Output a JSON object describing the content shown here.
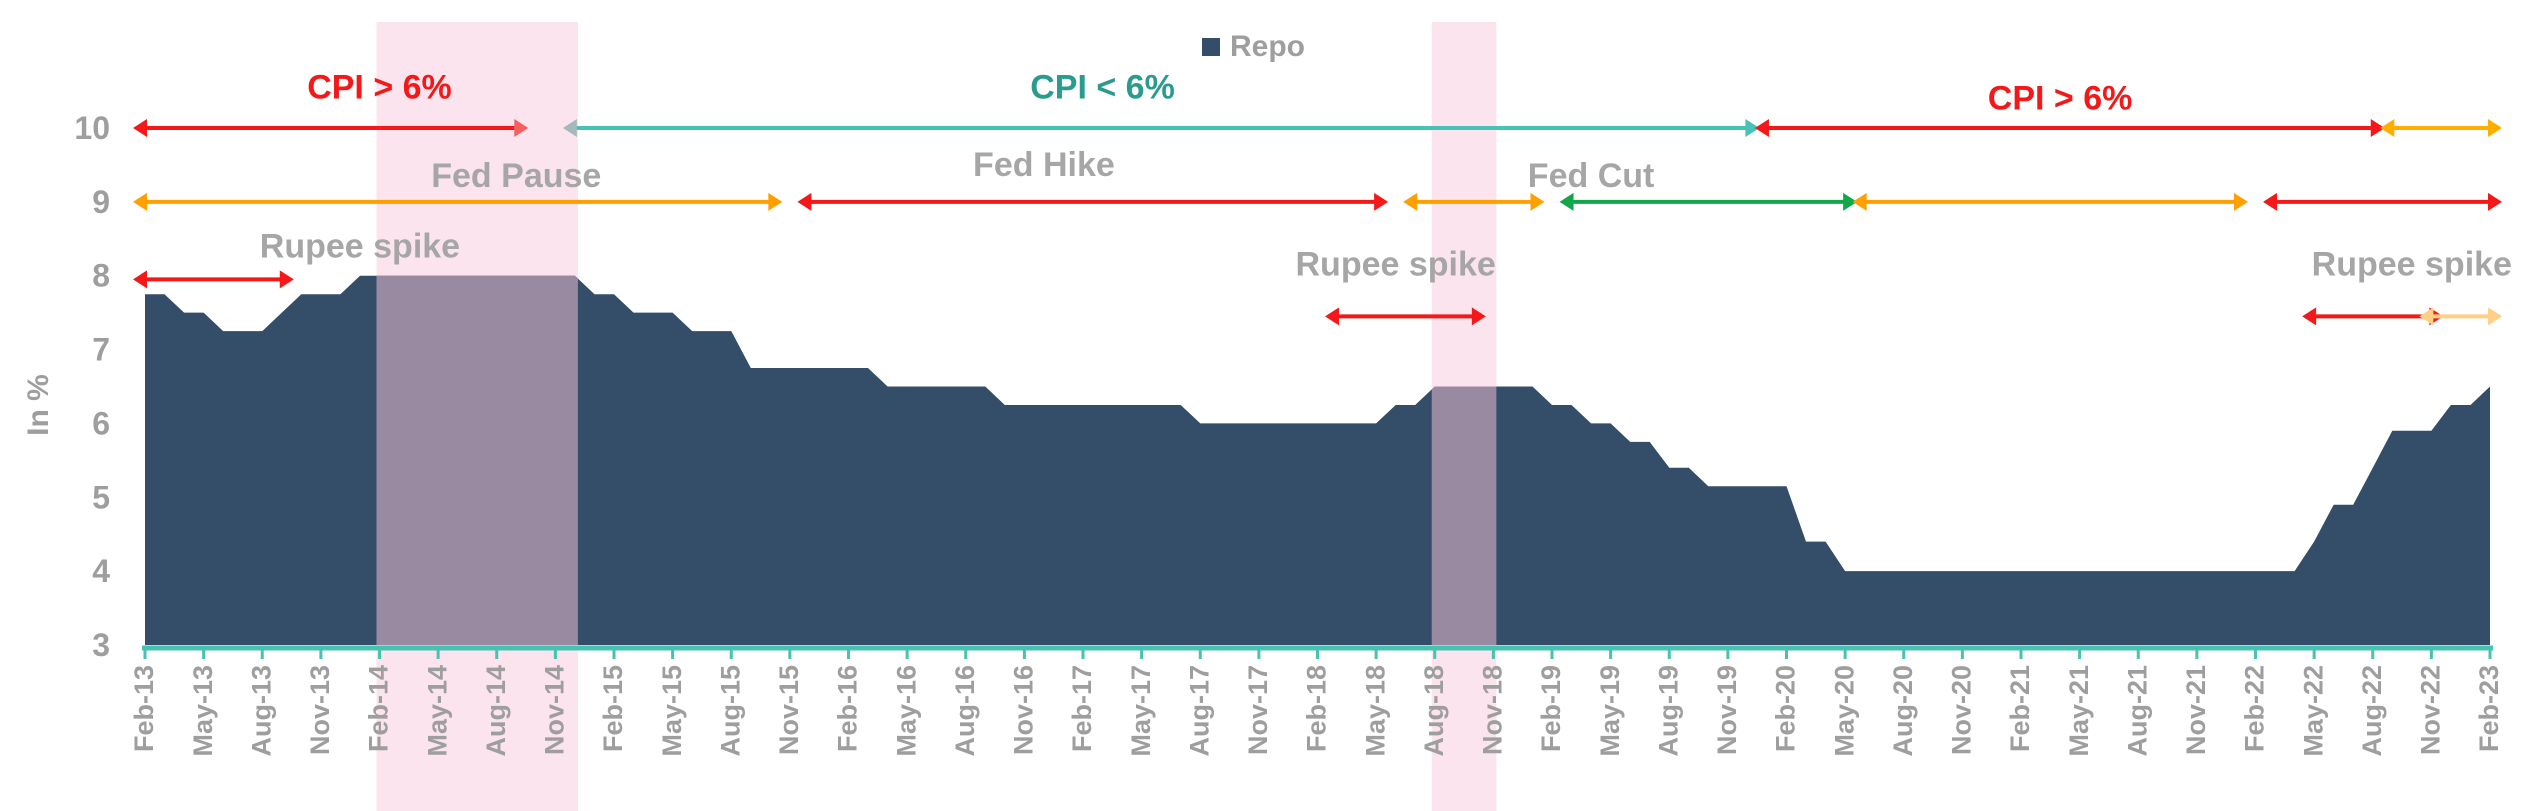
{
  "chart_data": {
    "type": "area",
    "ylabel": "In %",
    "ylim": [
      3,
      10
    ],
    "yticks": [
      3,
      4,
      5,
      6,
      7,
      8,
      9,
      10
    ],
    "legend": {
      "label": "Repo",
      "color": "#344d68",
      "placement": "top-center"
    },
    "x_labels": [
      "Feb-13",
      "May-13",
      "Aug-13",
      "Nov-13",
      "Feb-14",
      "May-14",
      "Aug-14",
      "Nov-14",
      "Feb-15",
      "May-15",
      "Aug-15",
      "Nov-15",
      "Feb-16",
      "May-16",
      "Aug-16",
      "Nov-16",
      "Feb-17",
      "May-17",
      "Aug-17",
      "Nov-17",
      "Feb-18",
      "May-18",
      "Aug-18",
      "Nov-18",
      "Feb-19",
      "May-19",
      "Aug-19",
      "Nov-19",
      "Feb-20",
      "May-20",
      "Aug-20",
      "Nov-20",
      "Feb-21",
      "May-21",
      "Aug-21",
      "Nov-21",
      "Feb-22",
      "May-22",
      "Aug-22",
      "Nov-22",
      "Feb-23"
    ],
    "series": [
      {
        "name": "Repo",
        "color": "#344d68",
        "points": [
          [
            "Feb-13",
            7.75
          ],
          [
            "Mar-13",
            7.75
          ],
          [
            "Apr-13",
            7.5
          ],
          [
            "May-13",
            7.5
          ],
          [
            "Jun-13",
            7.25
          ],
          [
            "Jul-13",
            7.25
          ],
          [
            "Aug-13",
            7.25
          ],
          [
            "Sep-13",
            7.5
          ],
          [
            "Oct-13",
            7.75
          ],
          [
            "Nov-13",
            7.75
          ],
          [
            "Dec-13",
            7.75
          ],
          [
            "Jan-14",
            8.0
          ],
          [
            "Feb-14",
            8.0
          ],
          [
            "Mar-14",
            8.0
          ],
          [
            "Apr-14",
            8.0
          ],
          [
            "May-14",
            8.0
          ],
          [
            "Jun-14",
            8.0
          ],
          [
            "Jul-14",
            8.0
          ],
          [
            "Aug-14",
            8.0
          ],
          [
            "Sep-14",
            8.0
          ],
          [
            "Oct-14",
            8.0
          ],
          [
            "Nov-14",
            8.0
          ],
          [
            "Dec-14",
            8.0
          ],
          [
            "Jan-15",
            7.75
          ],
          [
            "Feb-15",
            7.75
          ],
          [
            "Mar-15",
            7.5
          ],
          [
            "Apr-15",
            7.5
          ],
          [
            "May-15",
            7.5
          ],
          [
            "Jun-15",
            7.25
          ],
          [
            "Jul-15",
            7.25
          ],
          [
            "Aug-15",
            7.25
          ],
          [
            "Sep-15",
            6.75
          ],
          [
            "Oct-15",
            6.75
          ],
          [
            "Nov-15",
            6.75
          ],
          [
            "Dec-15",
            6.75
          ],
          [
            "Jan-16",
            6.75
          ],
          [
            "Feb-16",
            6.75
          ],
          [
            "Mar-16",
            6.75
          ],
          [
            "Apr-16",
            6.5
          ],
          [
            "May-16",
            6.5
          ],
          [
            "Jun-16",
            6.5
          ],
          [
            "Jul-16",
            6.5
          ],
          [
            "Aug-16",
            6.5
          ],
          [
            "Sep-16",
            6.5
          ],
          [
            "Oct-16",
            6.25
          ],
          [
            "Nov-16",
            6.25
          ],
          [
            "Dec-16",
            6.25
          ],
          [
            "Jan-17",
            6.25
          ],
          [
            "Feb-17",
            6.25
          ],
          [
            "Mar-17",
            6.25
          ],
          [
            "Apr-17",
            6.25
          ],
          [
            "May-17",
            6.25
          ],
          [
            "Jun-17",
            6.25
          ],
          [
            "Jul-17",
            6.25
          ],
          [
            "Aug-17",
            6.0
          ],
          [
            "Sep-17",
            6.0
          ],
          [
            "Oct-17",
            6.0
          ],
          [
            "Nov-17",
            6.0
          ],
          [
            "Dec-17",
            6.0
          ],
          [
            "Jan-18",
            6.0
          ],
          [
            "Feb-18",
            6.0
          ],
          [
            "Mar-18",
            6.0
          ],
          [
            "Apr-18",
            6.0
          ],
          [
            "May-18",
            6.0
          ],
          [
            "Jun-18",
            6.25
          ],
          [
            "Jul-18",
            6.25
          ],
          [
            "Aug-18",
            6.5
          ],
          [
            "Sep-18",
            6.5
          ],
          [
            "Oct-18",
            6.5
          ],
          [
            "Nov-18",
            6.5
          ],
          [
            "Dec-18",
            6.5
          ],
          [
            "Jan-19",
            6.5
          ],
          [
            "Feb-19",
            6.25
          ],
          [
            "Mar-19",
            6.25
          ],
          [
            "Apr-19",
            6.0
          ],
          [
            "May-19",
            6.0
          ],
          [
            "Jun-19",
            5.75
          ],
          [
            "Jul-19",
            5.75
          ],
          [
            "Aug-19",
            5.4
          ],
          [
            "Sep-19",
            5.4
          ],
          [
            "Oct-19",
            5.15
          ],
          [
            "Nov-19",
            5.15
          ],
          [
            "Dec-19",
            5.15
          ],
          [
            "Jan-20",
            5.15
          ],
          [
            "Feb-20",
            5.15
          ],
          [
            "Mar-20",
            4.4
          ],
          [
            "Apr-20",
            4.4
          ],
          [
            "May-20",
            4.0
          ],
          [
            "Jun-20",
            4.0
          ],
          [
            "Jul-20",
            4.0
          ],
          [
            "Aug-20",
            4.0
          ],
          [
            "Sep-20",
            4.0
          ],
          [
            "Oct-20",
            4.0
          ],
          [
            "Nov-20",
            4.0
          ],
          [
            "Dec-20",
            4.0
          ],
          [
            "Jan-21",
            4.0
          ],
          [
            "Feb-21",
            4.0
          ],
          [
            "Mar-21",
            4.0
          ],
          [
            "Apr-21",
            4.0
          ],
          [
            "May-21",
            4.0
          ],
          [
            "Jun-21",
            4.0
          ],
          [
            "Jul-21",
            4.0
          ],
          [
            "Aug-21",
            4.0
          ],
          [
            "Sep-21",
            4.0
          ],
          [
            "Oct-21",
            4.0
          ],
          [
            "Nov-21",
            4.0
          ],
          [
            "Dec-21",
            4.0
          ],
          [
            "Jan-22",
            4.0
          ],
          [
            "Feb-22",
            4.0
          ],
          [
            "Mar-22",
            4.0
          ],
          [
            "Apr-22",
            4.0
          ],
          [
            "May-22",
            4.4
          ],
          [
            "Jun-22",
            4.9
          ],
          [
            "Jul-22",
            4.9
          ],
          [
            "Aug-22",
            5.4
          ],
          [
            "Sep-22",
            5.9
          ],
          [
            "Oct-22",
            5.9
          ],
          [
            "Nov-22",
            5.9
          ],
          [
            "Dec-22",
            6.25
          ],
          [
            "Jan-23",
            6.25
          ],
          [
            "Feb-23",
            6.5
          ]
        ]
      }
    ],
    "shaded_periods": [
      {
        "start": "Feb-14",
        "end": "Dec-14",
        "color": "#fce4ef"
      },
      {
        "start": "Aug-18",
        "end": "Nov-18",
        "color": "#fce4ef"
      }
    ],
    "annotation_rows": [
      {
        "row": "cpi",
        "y": 10,
        "segments": [
          {
            "start": "Feb-13",
            "end": "Sep-14",
            "color": "#f41818",
            "color_end": "#f46060"
          },
          {
            "start": "Dec-14",
            "end": "Dec-19",
            "color": "#47c2b6",
            "color_start": "#a5b9bd"
          },
          {
            "start": "Jan-20",
            "end": "Aug-22",
            "color": "#f41818"
          },
          {
            "start": "Sep-22",
            "end": "Feb-23",
            "color": "#ffae00"
          }
        ],
        "labels": [
          {
            "text": "CPI > 6%",
            "at": "Feb-14",
            "y": 10.4,
            "color": "#f41818"
          },
          {
            "text": "CPI < 6%",
            "at": "Mar-17",
            "y": 10.4,
            "color": "#2a9c8e"
          },
          {
            "text": "CPI > 6%",
            "at": "Apr-21",
            "y": 10.25,
            "color": "#f41818"
          }
        ]
      },
      {
        "row": "fed",
        "y": 9,
        "segments": [
          {
            "start": "Feb-13",
            "end": "Oct-15",
            "color": "#ffa000"
          },
          {
            "start": "Dec-15",
            "end": "May-18",
            "color": "#f41818"
          },
          {
            "start": "Jul-18",
            "end": "Jan-19",
            "color": "#ffa000"
          },
          {
            "start": "Mar-19",
            "end": "May-20",
            "color": "#10a84a"
          },
          {
            "start": "Jun-20",
            "end": "Jan-22",
            "color": "#ffa000"
          },
          {
            "start": "Mar-22",
            "end": "Feb-23",
            "color": "#f41818"
          }
        ],
        "labels": [
          {
            "text": "Fed Pause",
            "at": "Sep-14",
            "y": 9.2,
            "color": "#a6a6a6"
          },
          {
            "text": "Fed Hike",
            "at": "Dec-16",
            "y": 9.35,
            "color": "#a6a6a6"
          },
          {
            "text": "Fed Cut",
            "at": "Apr-19",
            "y": 9.2,
            "color": "#a6a6a6"
          }
        ]
      },
      {
        "row": "rupee",
        "y_default": 7.95,
        "segments": [
          {
            "start": "Feb-13",
            "end": "Sep-13",
            "y": 7.95,
            "color": "#f41818"
          },
          {
            "start": "Mar-18",
            "end": "Oct-18",
            "y": 7.45,
            "color": "#f41818"
          },
          {
            "start": "May-22",
            "end": "Nov-22",
            "y": 7.45,
            "color": "#f41818"
          },
          {
            "start": "Nov-22",
            "end": "Feb-23",
            "y": 7.45,
            "color": "#ffcf86"
          }
        ],
        "labels": [
          {
            "text": "Rupee spike",
            "at": "Jan-14",
            "y": 8.25,
            "color": "#a6a6a6"
          },
          {
            "text": "Rupee spike",
            "at": "Jun-18",
            "y": 8.0,
            "color": "#a6a6a6"
          },
          {
            "text": "Rupee spike",
            "at": "Oct-22",
            "y": 8.0,
            "color": "#a6a6a6"
          }
        ]
      }
    ],
    "axis_line_color": "#48c2b0",
    "tick_color": "#9e9e9e",
    "shade_overlay_color": "#9a8aa1"
  }
}
